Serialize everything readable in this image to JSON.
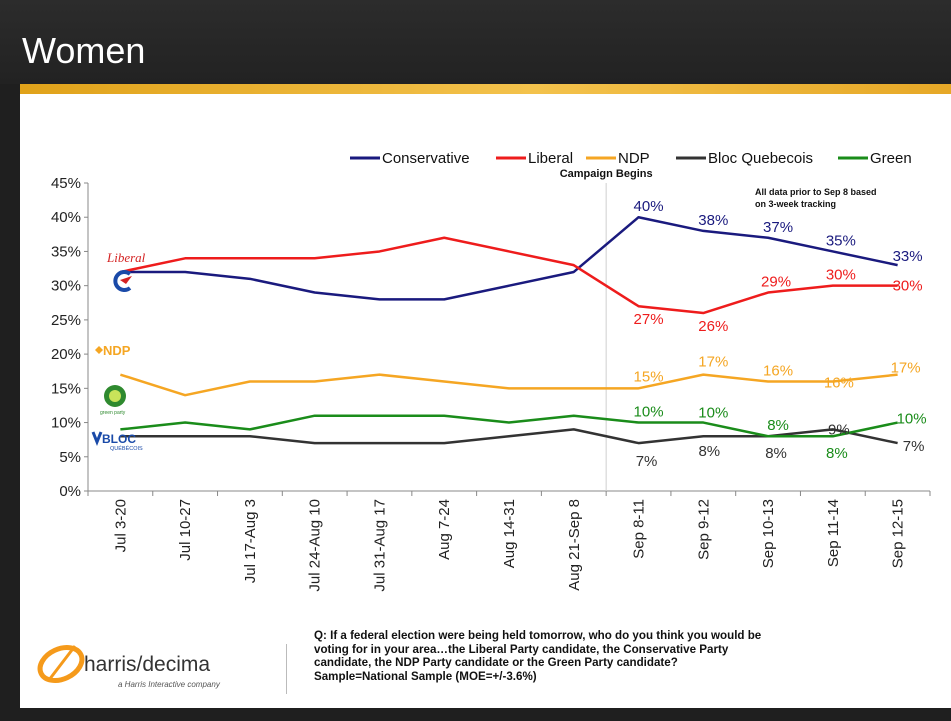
{
  "title": "Women",
  "chart_data": {
    "type": "line",
    "categories": [
      "Jul 3-20",
      "Jul 10-27",
      "Jul 17-Aug 3",
      "Jul 24-Aug 10",
      "Jul 31-Aug 17",
      "Aug 7-24",
      "Aug 14-31",
      "Aug 21-Sep 8",
      "Sep 8-11",
      "Sep 9-12",
      "Sep 10-13",
      "Sep 11-14",
      "Sep 12-15"
    ],
    "ylim": [
      0,
      45
    ],
    "yticks": [
      "0%",
      "5%",
      "10%",
      "15%",
      "20%",
      "25%",
      "30%",
      "35%",
      "40%",
      "45%"
    ],
    "series": [
      {
        "name": "Conservative",
        "color": "#1a1a7e",
        "values": [
          32,
          32,
          31,
          29,
          28,
          28,
          30,
          32,
          40,
          38,
          37,
          35,
          33
        ],
        "labels": [
          "",
          "",
          "",
          "",
          "",
          "",
          "",
          "",
          "40%",
          "38%",
          "37%",
          "35%",
          "33%"
        ]
      },
      {
        "name": "Liberal",
        "color": "#ee1c1c",
        "values": [
          32,
          34,
          34,
          34,
          35,
          37,
          35,
          33,
          27,
          26,
          29,
          30,
          30
        ],
        "labels": [
          "",
          "",
          "",
          "",
          "",
          "",
          "",
          "",
          "27%",
          "26%",
          "29%",
          "30%",
          "30%"
        ]
      },
      {
        "name": "NDP",
        "color": "#f5a623",
        "values": [
          17,
          14,
          16,
          16,
          17,
          16,
          15,
          15,
          15,
          17,
          16,
          16,
          17
        ],
        "labels": [
          "",
          "",
          "",
          "",
          "",
          "",
          "",
          "",
          "15%",
          "17%",
          "16%",
          "16%",
          "17%"
        ]
      },
      {
        "name": "Bloc Quebecois",
        "color": "#333333",
        "values": [
          8,
          8,
          8,
          7,
          7,
          7,
          8,
          9,
          7,
          8,
          8,
          9,
          7
        ],
        "labels": [
          "",
          "",
          "",
          "",
          "",
          "",
          "",
          "",
          "7%",
          "8%",
          "8%",
          "9%",
          "7%"
        ]
      },
      {
        "name": "Green",
        "color": "#1a8c1a",
        "values": [
          9,
          10,
          9,
          11,
          11,
          11,
          10,
          11,
          10,
          10,
          8,
          8,
          10
        ],
        "labels": [
          "",
          "",
          "",
          "",
          "",
          "",
          "",
          "",
          "10%",
          "10%",
          "8%",
          "8%",
          "10%"
        ]
      }
    ],
    "annotations": {
      "campaign": "Campaign Begins",
      "note1": "All data prior to Sep 8 based",
      "note2": "on 3-week tracking"
    }
  },
  "party_logos": {
    "liberal": "Liberal",
    "conservative": "C",
    "ndp": "NDP",
    "green": "green party",
    "bloc": "BLOC",
    "bloc_sub": "QUÉBÉCOIS"
  },
  "brand": {
    "name": "harris/decima",
    "tagline": "a Harris Interactive company"
  },
  "footnote": {
    "line1": "Q: If a federal election were being held tomorrow, who do you think you would be",
    "line2": "voting for in your area…the Liberal Party candidate, the Conservative Party",
    "line3": "candidate, the NDP Party candidate or the Green Party candidate?",
    "line4": "Sample=National Sample (MOE=+/-3.6%)"
  }
}
